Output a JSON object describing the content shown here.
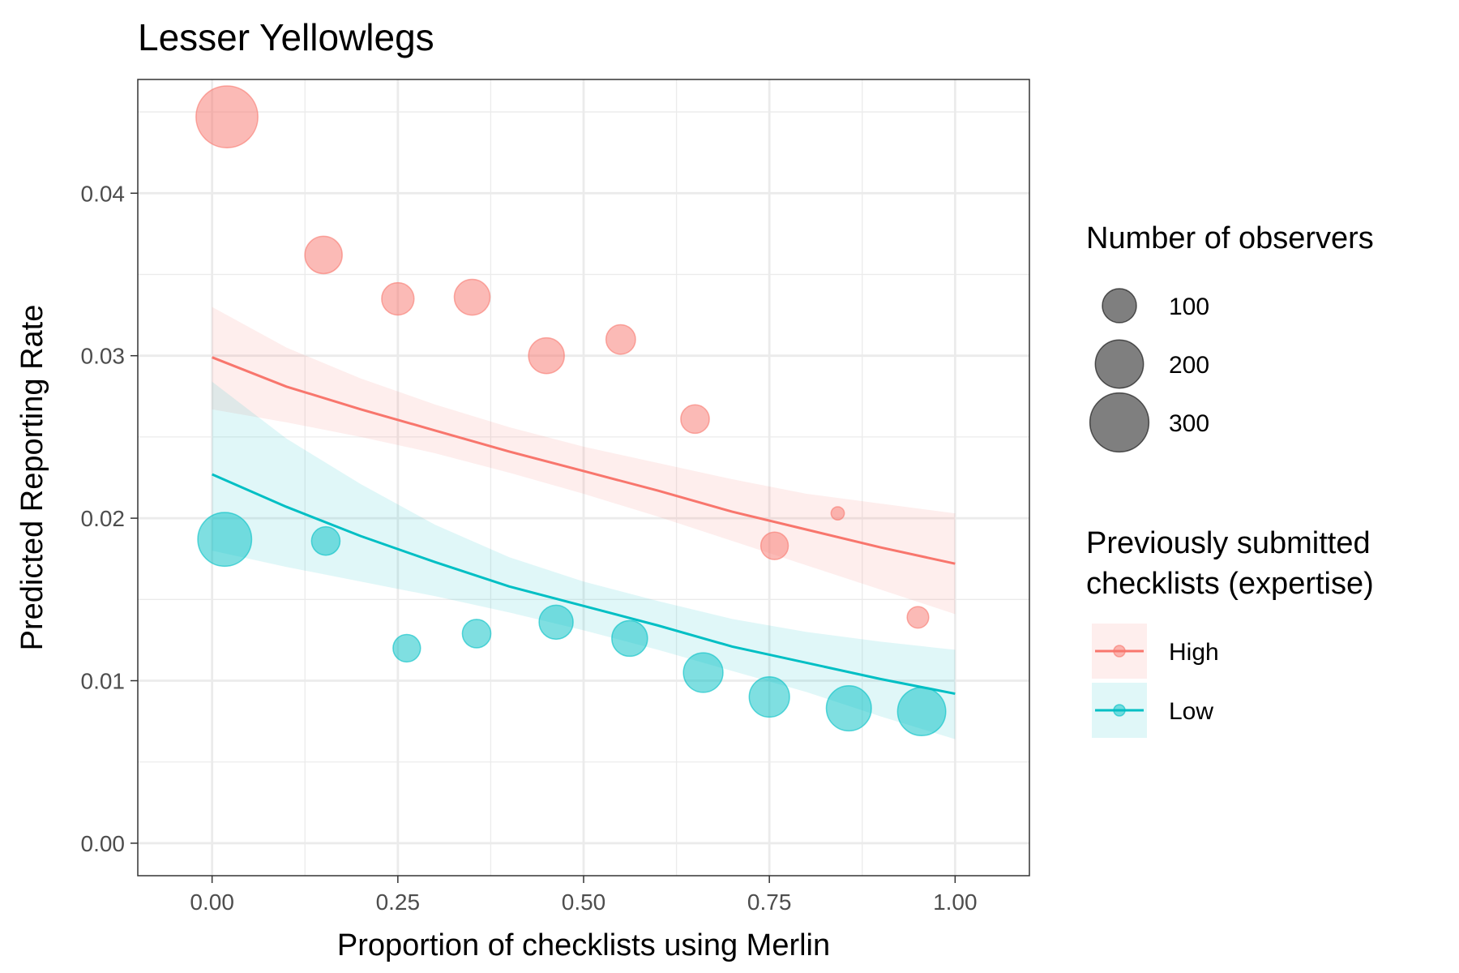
{
  "chart_data": {
    "type": "scatter",
    "title": "Lesser Yellowlegs",
    "xlabel": "Proportion of checklists using Merlin",
    "ylabel": "Predicted Reporting Rate",
    "xlim": [
      -0.1,
      1.1
    ],
    "ylim": [
      -0.002,
      0.047
    ],
    "x_ticks": [
      0.0,
      0.25,
      0.5,
      0.75,
      1.0
    ],
    "x_tick_labels": [
      "0.00",
      "0.25",
      "0.50",
      "0.75",
      "1.00"
    ],
    "y_ticks": [
      0.0,
      0.01,
      0.02,
      0.03,
      0.04
    ],
    "y_tick_labels": [
      "0.00",
      "0.01",
      "0.02",
      "0.03",
      "0.04"
    ],
    "grid": true,
    "legend_position": "right",
    "size_legend": {
      "title": "Number of observers",
      "entries": [
        {
          "label": "100",
          "value": 100
        },
        {
          "label": "200",
          "value": 200
        },
        {
          "label": "300",
          "value": 300
        }
      ]
    },
    "color_legend": {
      "title_lines": [
        "Previously submitted",
        "checklists (expertise)"
      ],
      "entries": [
        {
          "label": "High",
          "color": "#F8766D"
        },
        {
          "label": "Low",
          "color": "#00BFC4"
        }
      ]
    },
    "series": [
      {
        "name": "High",
        "color": "#F8766D",
        "points": [
          {
            "x": 0.02,
            "y": 0.0447,
            "n": 330
          },
          {
            "x": 0.15,
            "y": 0.0362,
            "n": 120
          },
          {
            "x": 0.25,
            "y": 0.0335,
            "n": 90
          },
          {
            "x": 0.35,
            "y": 0.0336,
            "n": 110
          },
          {
            "x": 0.45,
            "y": 0.03,
            "n": 110
          },
          {
            "x": 0.55,
            "y": 0.031,
            "n": 75
          },
          {
            "x": 0.65,
            "y": 0.0261,
            "n": 70
          },
          {
            "x": 0.757,
            "y": 0.0183,
            "n": 65
          },
          {
            "x": 0.842,
            "y": 0.0203,
            "n": 15
          },
          {
            "x": 0.95,
            "y": 0.0139,
            "n": 40
          }
        ],
        "fit": {
          "x": [
            0.0,
            0.1,
            0.2,
            0.3,
            0.4,
            0.5,
            0.6,
            0.7,
            0.8,
            0.9,
            1.0
          ],
          "y": [
            0.0299,
            0.0281,
            0.0267,
            0.0254,
            0.0241,
            0.0229,
            0.0217,
            0.0204,
            0.0193,
            0.0182,
            0.0172
          ],
          "lower": [
            0.0267,
            0.0259,
            0.025,
            0.024,
            0.0228,
            0.0215,
            0.0201,
            0.0186,
            0.0171,
            0.0156,
            0.0141
          ],
          "upper": [
            0.033,
            0.0305,
            0.0286,
            0.027,
            0.0256,
            0.0244,
            0.0234,
            0.0224,
            0.0215,
            0.0209,
            0.0203
          ]
        }
      },
      {
        "name": "Low",
        "color": "#00BFC4",
        "points": [
          {
            "x": 0.017,
            "y": 0.0187,
            "n": 250
          },
          {
            "x": 0.153,
            "y": 0.0186,
            "n": 70
          },
          {
            "x": 0.262,
            "y": 0.012,
            "n": 65
          },
          {
            "x": 0.356,
            "y": 0.0129,
            "n": 70
          },
          {
            "x": 0.463,
            "y": 0.0136,
            "n": 100
          },
          {
            "x": 0.562,
            "y": 0.0126,
            "n": 110
          },
          {
            "x": 0.661,
            "y": 0.0105,
            "n": 135
          },
          {
            "x": 0.75,
            "y": 0.009,
            "n": 140
          },
          {
            "x": 0.857,
            "y": 0.0083,
            "n": 175
          },
          {
            "x": 0.955,
            "y": 0.0081,
            "n": 200
          }
        ],
        "fit": {
          "x": [
            0.0,
            0.1,
            0.2,
            0.3,
            0.4,
            0.5,
            0.6,
            0.7,
            0.8,
            0.9,
            1.0
          ],
          "y": [
            0.0227,
            0.0207,
            0.0189,
            0.0173,
            0.0158,
            0.0146,
            0.0134,
            0.0121,
            0.0111,
            0.0101,
            0.0092
          ],
          "lower": [
            0.018,
            0.017,
            0.0161,
            0.0152,
            0.0142,
            0.0131,
            0.0119,
            0.0106,
            0.0093,
            0.0078,
            0.0064
          ],
          "upper": [
            0.0284,
            0.0249,
            0.0221,
            0.0196,
            0.0176,
            0.0161,
            0.0149,
            0.0138,
            0.013,
            0.0124,
            0.0119
          ]
        }
      }
    ]
  }
}
